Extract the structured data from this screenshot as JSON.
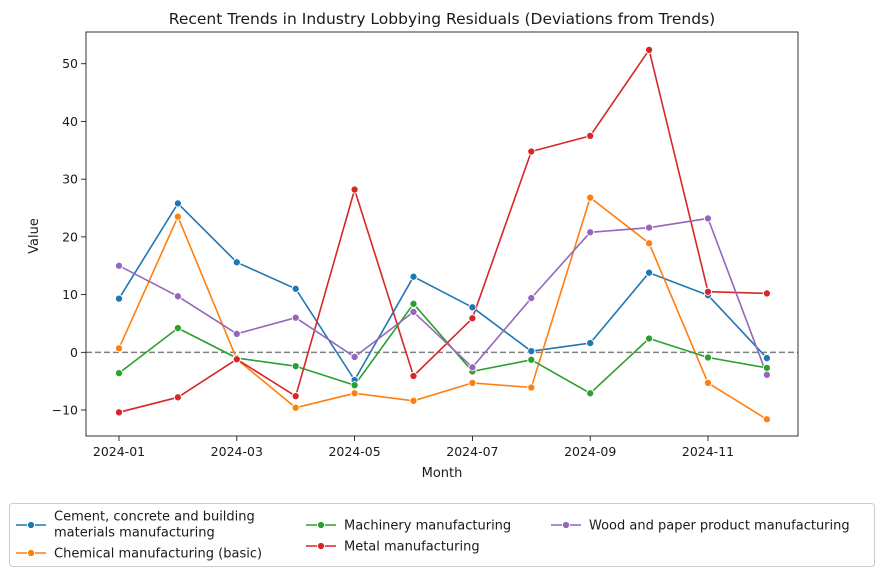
{
  "chart_data": {
    "type": "line",
    "title": "Recent Trends in Industry Lobbying Residuals (Deviations from Trends)",
    "xlabel": "Month",
    "ylabel": "Value",
    "x": [
      "2024-01",
      "2024-02",
      "2024-03",
      "2024-04",
      "2024-05",
      "2024-06",
      "2024-07",
      "2024-08",
      "2024-09",
      "2024-10",
      "2024-11",
      "2024-12"
    ],
    "x_tick_labels": [
      "2024-01",
      "2024-03",
      "2024-05",
      "2024-07",
      "2024-09",
      "2024-11"
    ],
    "y_ticks": [
      -10,
      0,
      10,
      20,
      30,
      40,
      50
    ],
    "ylim": [
      -14.5,
      55.5
    ],
    "grid": false,
    "reference_line": {
      "y": 0,
      "style": "dashed",
      "color": "#808080"
    },
    "legend_position": "bottom",
    "series": [
      {
        "name": "Cement, concrete and building materials manufacturing",
        "color": "#1f77b4",
        "values": [
          9.3,
          25.8,
          15.6,
          11.0,
          -4.8,
          13.1,
          7.8,
          0.2,
          1.6,
          13.8,
          9.9,
          -1.0
        ]
      },
      {
        "name": "Chemical manufacturing (basic)",
        "color": "#ff7f0e",
        "values": [
          0.7,
          23.5,
          -1.2,
          -9.6,
          -7.1,
          -8.4,
          -5.3,
          -6.1,
          26.8,
          18.9,
          -5.3,
          -11.6
        ]
      },
      {
        "name": "Machinery manufacturing",
        "color": "#2ca02c",
        "values": [
          -3.6,
          4.2,
          -1.0,
          -2.4,
          -5.7,
          8.4,
          -3.3,
          -1.3,
          -7.1,
          2.4,
          -0.9,
          -2.7
        ]
      },
      {
        "name": "Metal manufacturing",
        "color": "#d62728",
        "values": [
          -10.4,
          -7.8,
          -1.2,
          -7.6,
          28.2,
          -4.1,
          5.9,
          34.8,
          37.5,
          52.4,
          10.5,
          10.2
        ]
      },
      {
        "name": "Wood and paper product manufacturing",
        "color": "#9467bd",
        "values": [
          15.0,
          9.7,
          3.2,
          6.0,
          -0.8,
          7.0,
          -2.6,
          9.4,
          20.8,
          21.6,
          23.2,
          -3.9
        ]
      }
    ]
  }
}
